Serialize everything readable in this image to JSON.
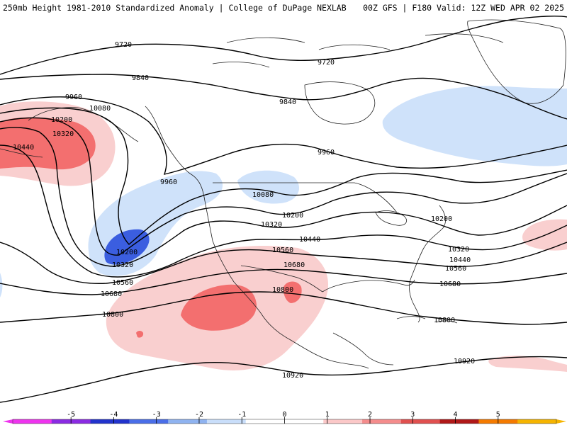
{
  "header": {
    "left": "250mb Height 1981-2010 Standardized Anomaly | College of DuPage NEXLAB",
    "right": "00Z GFS | F180 Valid: 12Z WED APR 02 2025"
  },
  "contour_labels": [
    "9720",
    "9840",
    "9960",
    "10080",
    "10200",
    "10320",
    "10440",
    "10560",
    "10680",
    "10800",
    "10920"
  ],
  "colorbar": {
    "ticks": [
      "-5",
      "-4",
      "-3",
      "-2",
      "-1",
      "0",
      "1",
      "2",
      "3",
      "4",
      "5"
    ],
    "colors": [
      "#ee33ee",
      "#8a2be2",
      "#2233cc",
      "#4a6ee8",
      "#8fb3f0",
      "#c9defa",
      "#ffffff",
      "#ffffff",
      "#fbc8c8",
      "#f48c8c",
      "#e0504f",
      "#b01818",
      "#f47a00",
      "#f5b400"
    ]
  },
  "fill_colors": {
    "neg1": "#cfe2fa",
    "neg2": "#8db0ee",
    "neg3": "#3b5ee0",
    "pos1": "#f9cfcf",
    "pos2": "#f36f6f"
  }
}
